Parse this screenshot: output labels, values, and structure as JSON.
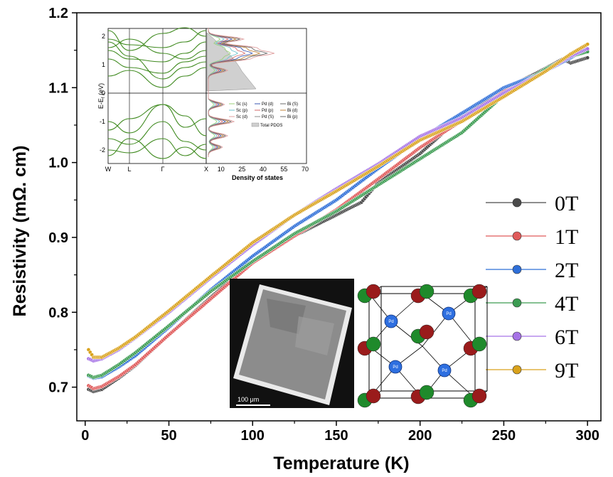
{
  "chart_data": {
    "type": "scatter",
    "xlabel": "Temperature (K)",
    "ylabel": "Resistivity (mΩ. cm)",
    "xlim": [
      -5,
      308
    ],
    "ylim": [
      0.655,
      1.2
    ],
    "xticks": [
      0,
      50,
      100,
      150,
      200,
      250,
      300
    ],
    "yticks": [
      0.7,
      0.8,
      0.9,
      1.0,
      1.1,
      1.2
    ],
    "xtick_labels": [
      "0",
      "50",
      "100",
      "150",
      "200",
      "250",
      "300"
    ],
    "ytick_labels": [
      "0.7",
      "0.8",
      "0.9",
      "1.0",
      "1.1",
      "1.2"
    ],
    "legend_position": "right",
    "series": [
      {
        "name": "0T",
        "color": "#4a4a4a",
        "x": [
          2,
          5,
          10,
          20,
          30,
          50,
          75,
          100,
          125,
          150,
          165,
          175,
          200,
          225,
          250,
          270,
          285,
          290,
          300
        ],
        "y": [
          0.697,
          0.694,
          0.697,
          0.712,
          0.729,
          0.77,
          0.82,
          0.868,
          0.902,
          0.93,
          0.947,
          0.973,
          1.012,
          1.062,
          1.098,
          1.12,
          1.138,
          1.133,
          1.14
        ]
      },
      {
        "name": "1T",
        "color": "#e05a5a",
        "x": [
          2,
          5,
          10,
          20,
          30,
          50,
          75,
          100,
          125,
          150,
          175,
          200,
          225,
          250,
          275,
          290,
          300
        ],
        "y": [
          0.702,
          0.698,
          0.701,
          0.714,
          0.73,
          0.77,
          0.818,
          0.866,
          0.902,
          0.937,
          0.978,
          1.02,
          1.056,
          1.095,
          1.122,
          1.142,
          1.15
        ]
      },
      {
        "name": "2T",
        "color": "#2f6fd8",
        "x": [
          2,
          5,
          10,
          20,
          30,
          50,
          75,
          100,
          125,
          150,
          175,
          200,
          225,
          250,
          275,
          290,
          300
        ],
        "y": [
          0.715,
          0.712,
          0.714,
          0.727,
          0.742,
          0.78,
          0.83,
          0.875,
          0.915,
          0.95,
          0.992,
          1.032,
          1.066,
          1.1,
          1.122,
          1.14,
          1.152
        ]
      },
      {
        "name": "4T",
        "color": "#3c9c52",
        "x": [
          2,
          5,
          10,
          20,
          30,
          50,
          75,
          100,
          125,
          150,
          175,
          200,
          225,
          250,
          275,
          290,
          300
        ],
        "y": [
          0.716,
          0.713,
          0.716,
          0.73,
          0.746,
          0.782,
          0.828,
          0.868,
          0.905,
          0.935,
          0.97,
          1.005,
          1.04,
          1.09,
          1.125,
          1.142,
          1.148
        ]
      },
      {
        "name": "6T",
        "color": "#a673e6",
        "x": [
          2,
          5,
          10,
          20,
          30,
          50,
          75,
          100,
          125,
          150,
          175,
          200,
          225,
          250,
          275,
          290,
          300
        ],
        "y": [
          0.738,
          0.735,
          0.738,
          0.75,
          0.766,
          0.8,
          0.846,
          0.89,
          0.93,
          0.965,
          0.998,
          1.035,
          1.06,
          1.093,
          1.122,
          1.142,
          1.152
        ]
      },
      {
        "name": "9T",
        "color": "#d9a21c",
        "x": [
          2,
          5,
          10,
          20,
          30,
          50,
          75,
          100,
          125,
          150,
          175,
          200,
          225,
          250,
          275,
          290,
          300
        ],
        "y": [
          0.75,
          0.74,
          0.74,
          0.752,
          0.767,
          0.802,
          0.848,
          0.893,
          0.93,
          0.962,
          0.995,
          1.03,
          1.055,
          1.088,
          1.122,
          1.145,
          1.158
        ]
      }
    ]
  },
  "inset_band": {
    "ylabel": "E-E",
    "ylabel_sub": "f",
    "ylabel_unit": " (eV)",
    "xlabel": "Density of states",
    "kpoints": [
      "W",
      "L",
      "Γ",
      "X"
    ],
    "yticks": [
      "2",
      "1",
      "0",
      "-1",
      "-2"
    ],
    "dos_ticks": [
      "10",
      "25",
      "40",
      "55",
      "70"
    ],
    "dos_legend": [
      "Sc (s)",
      "Pd (d)",
      "Bi (S)",
      "Sc (p)",
      "Pd (p)",
      "Bi (d)",
      "Sc (d)",
      "Pd (S)",
      "Bi (p)",
      "Total PDOS"
    ]
  },
  "inset_sem": {
    "scale_label": "100 μm"
  },
  "inset_crystal": {
    "atom_label": "Pd"
  }
}
